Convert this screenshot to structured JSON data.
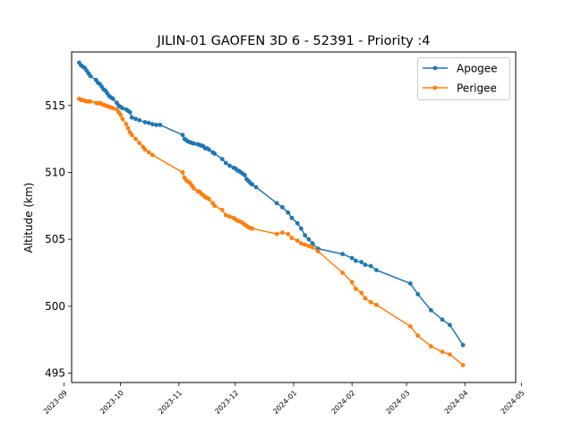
{
  "chart_data": {
    "type": "line",
    "title": "JILIN-01 GAOFEN 3D 6 - 52391 - Priority :4",
    "xlabel": "",
    "ylabel": "Altitude (km)",
    "x_type": "date",
    "xlim": [
      "2023-09-05",
      "2024-04-28"
    ],
    "ylim": [
      494.3,
      519.0
    ],
    "x_ticks": [
      "2023-09-01",
      "2023-10-01",
      "2023-11-01",
      "2023-12-01",
      "2024-01-01",
      "2024-02-01",
      "2024-03-01",
      "2024-04-01",
      "2024-05-01"
    ],
    "x_tick_labels": [
      "2023-09",
      "2023-10",
      "2023-11",
      "2023-12",
      "2024-01",
      "2024-02",
      "2024-03",
      "2024-04",
      "2024-05"
    ],
    "y_ticks": [
      495,
      500,
      505,
      510,
      515
    ],
    "grid": false,
    "legend_position": "top-right",
    "series": [
      {
        "name": "Apogee",
        "color": "#1f77b4",
        "points": [
          [
            "2023-09-09",
            518.2
          ],
          [
            "2023-09-10",
            518.0
          ],
          [
            "2023-09-11",
            517.9
          ],
          [
            "2023-09-12",
            517.8
          ],
          [
            "2023-09-13",
            517.6
          ],
          [
            "2023-09-14",
            517.4
          ],
          [
            "2023-09-15",
            517.2
          ],
          [
            "2023-09-18",
            516.9
          ],
          [
            "2023-09-19",
            516.7
          ],
          [
            "2023-09-20",
            516.6
          ],
          [
            "2023-09-21",
            516.4
          ],
          [
            "2023-09-22",
            516.2
          ],
          [
            "2023-09-23",
            516.1
          ],
          [
            "2023-09-24",
            515.9
          ],
          [
            "2023-09-25",
            515.7
          ],
          [
            "2023-09-26",
            515.6
          ],
          [
            "2023-09-27",
            515.5
          ],
          [
            "2023-09-29",
            515.2
          ],
          [
            "2023-09-30",
            515.0
          ],
          [
            "2023-10-01",
            514.9
          ],
          [
            "2023-10-02",
            514.8
          ],
          [
            "2023-10-04",
            514.7
          ],
          [
            "2023-10-05",
            514.6
          ],
          [
            "2023-10-06",
            514.5
          ],
          [
            "2023-10-07",
            514.1
          ],
          [
            "2023-10-09",
            514.0
          ],
          [
            "2023-10-11",
            513.9
          ],
          [
            "2023-10-14",
            513.75
          ],
          [
            "2023-10-16",
            513.7
          ],
          [
            "2023-10-18",
            513.6
          ],
          [
            "2023-10-20",
            513.55
          ],
          [
            "2023-10-22",
            513.55
          ],
          [
            "2023-11-03",
            512.8
          ],
          [
            "2023-11-04",
            512.5
          ],
          [
            "2023-11-05",
            512.4
          ],
          [
            "2023-11-06",
            512.3
          ],
          [
            "2023-11-07",
            512.25
          ],
          [
            "2023-11-08",
            512.2
          ],
          [
            "2023-11-09",
            512.15
          ],
          [
            "2023-11-11",
            512.1
          ],
          [
            "2023-11-12",
            512.05
          ],
          [
            "2023-11-13",
            512.0
          ],
          [
            "2023-11-14",
            511.95
          ],
          [
            "2023-11-15",
            511.8
          ],
          [
            "2023-11-16",
            511.8
          ],
          [
            "2023-11-17",
            511.7
          ],
          [
            "2023-11-19",
            511.5
          ],
          [
            "2023-11-20",
            511.4
          ],
          [
            "2023-11-24",
            511.0
          ],
          [
            "2023-11-26",
            510.7
          ],
          [
            "2023-11-28",
            510.5
          ],
          [
            "2023-11-30",
            510.35
          ],
          [
            "2023-12-01",
            510.3
          ],
          [
            "2023-12-02",
            510.15
          ],
          [
            "2023-12-03",
            510.1
          ],
          [
            "2023-12-04",
            510.0
          ],
          [
            "2023-12-05",
            509.9
          ],
          [
            "2023-12-06",
            509.8
          ],
          [
            "2023-12-07",
            509.5
          ],
          [
            "2023-12-08",
            509.35
          ],
          [
            "2023-12-09",
            509.2
          ],
          [
            "2023-12-10",
            509.1
          ],
          [
            "2023-12-12",
            508.9
          ],
          [
            "2023-12-23",
            507.7
          ],
          [
            "2023-12-26",
            507.4
          ],
          [
            "2023-12-29",
            507.0
          ],
          [
            "2023-12-31",
            506.6
          ],
          [
            "2024-01-03",
            506.2
          ],
          [
            "2024-01-05",
            505.8
          ],
          [
            "2024-01-07",
            505.3
          ],
          [
            "2024-01-09",
            505.0
          ],
          [
            "2024-01-11",
            504.7
          ],
          [
            "2024-01-14",
            504.3
          ],
          [
            "2024-01-27",
            503.9
          ],
          [
            "2024-02-01",
            503.6
          ],
          [
            "2024-02-03",
            503.4
          ],
          [
            "2024-02-06",
            503.3
          ],
          [
            "2024-02-08",
            503.1
          ],
          [
            "2024-02-11",
            503.0
          ],
          [
            "2024-02-14",
            502.7
          ],
          [
            "2024-03-03",
            501.7
          ],
          [
            "2024-03-07",
            500.9
          ],
          [
            "2024-03-14",
            499.7
          ],
          [
            "2024-03-20",
            499.0
          ],
          [
            "2024-03-24",
            498.6
          ],
          [
            "2024-03-31",
            497.1
          ]
        ]
      },
      {
        "name": "Perigee",
        "color": "#ff7f0e",
        "points": [
          [
            "2023-09-09",
            515.5
          ],
          [
            "2023-09-10",
            515.4
          ],
          [
            "2023-09-11",
            515.4
          ],
          [
            "2023-09-12",
            515.35
          ],
          [
            "2023-09-13",
            515.3
          ],
          [
            "2023-09-14",
            515.3
          ],
          [
            "2023-09-15",
            515.3
          ],
          [
            "2023-09-18",
            515.2
          ],
          [
            "2023-09-19",
            515.15
          ],
          [
            "2023-09-20",
            515.2
          ],
          [
            "2023-09-21",
            515.1
          ],
          [
            "2023-09-22",
            515.05
          ],
          [
            "2023-09-23",
            515.0
          ],
          [
            "2023-09-24",
            514.95
          ],
          [
            "2023-09-25",
            514.9
          ],
          [
            "2023-09-26",
            514.85
          ],
          [
            "2023-09-27",
            514.8
          ],
          [
            "2023-09-29",
            514.7
          ],
          [
            "2023-09-30",
            514.5
          ],
          [
            "2023-10-01",
            514.3
          ],
          [
            "2023-10-02",
            514.0
          ],
          [
            "2023-10-04",
            513.6
          ],
          [
            "2023-10-05",
            513.3
          ],
          [
            "2023-10-06",
            513.0
          ],
          [
            "2023-10-07",
            512.8
          ],
          [
            "2023-10-09",
            512.5
          ],
          [
            "2023-10-11",
            512.2
          ],
          [
            "2023-10-13",
            511.9
          ],
          [
            "2023-10-14",
            511.7
          ],
          [
            "2023-10-16",
            511.5
          ],
          [
            "2023-10-18",
            511.3
          ],
          [
            "2023-11-03",
            510.0
          ],
          [
            "2023-11-04",
            509.6
          ],
          [
            "2023-11-05",
            509.4
          ],
          [
            "2023-11-06",
            509.3
          ],
          [
            "2023-11-07",
            509.2
          ],
          [
            "2023-11-08",
            509.0
          ],
          [
            "2023-11-09",
            508.8
          ],
          [
            "2023-11-11",
            508.6
          ],
          [
            "2023-11-12",
            508.55
          ],
          [
            "2023-11-13",
            508.4
          ],
          [
            "2023-11-14",
            508.3
          ],
          [
            "2023-11-15",
            508.15
          ],
          [
            "2023-11-16",
            508.1
          ],
          [
            "2023-11-17",
            508.0
          ],
          [
            "2023-11-19",
            507.7
          ],
          [
            "2023-11-20",
            507.5
          ],
          [
            "2023-11-24",
            507.2
          ],
          [
            "2023-11-26",
            506.8
          ],
          [
            "2023-11-28",
            506.7
          ],
          [
            "2023-11-30",
            506.6
          ],
          [
            "2023-12-01",
            506.5
          ],
          [
            "2023-12-02",
            506.4
          ],
          [
            "2023-12-03",
            506.35
          ],
          [
            "2023-12-04",
            506.3
          ],
          [
            "2023-12-05",
            506.2
          ],
          [
            "2023-12-06",
            506.1
          ],
          [
            "2023-12-07",
            506.0
          ],
          [
            "2023-12-08",
            505.9
          ],
          [
            "2023-12-09",
            505.85
          ],
          [
            "2023-12-10",
            505.8
          ],
          [
            "2023-12-23",
            505.4
          ],
          [
            "2023-12-26",
            505.5
          ],
          [
            "2023-12-29",
            505.4
          ],
          [
            "2023-12-31",
            505.1
          ],
          [
            "2024-01-03",
            504.9
          ],
          [
            "2024-01-05",
            504.7
          ],
          [
            "2024-01-07",
            504.6
          ],
          [
            "2024-01-09",
            504.5
          ],
          [
            "2024-01-11",
            504.4
          ],
          [
            "2024-01-14",
            504.1
          ],
          [
            "2024-01-27",
            502.5
          ],
          [
            "2024-02-01",
            501.8
          ],
          [
            "2024-02-03",
            501.3
          ],
          [
            "2024-02-06",
            501.0
          ],
          [
            "2024-02-08",
            500.6
          ],
          [
            "2024-02-11",
            500.3
          ],
          [
            "2024-02-14",
            500.1
          ],
          [
            "2024-03-03",
            498.5
          ],
          [
            "2024-03-07",
            497.8
          ],
          [
            "2024-03-14",
            497.0
          ],
          [
            "2024-03-20",
            496.6
          ],
          [
            "2024-03-24",
            496.4
          ],
          [
            "2024-03-31",
            495.6
          ]
        ]
      }
    ]
  }
}
